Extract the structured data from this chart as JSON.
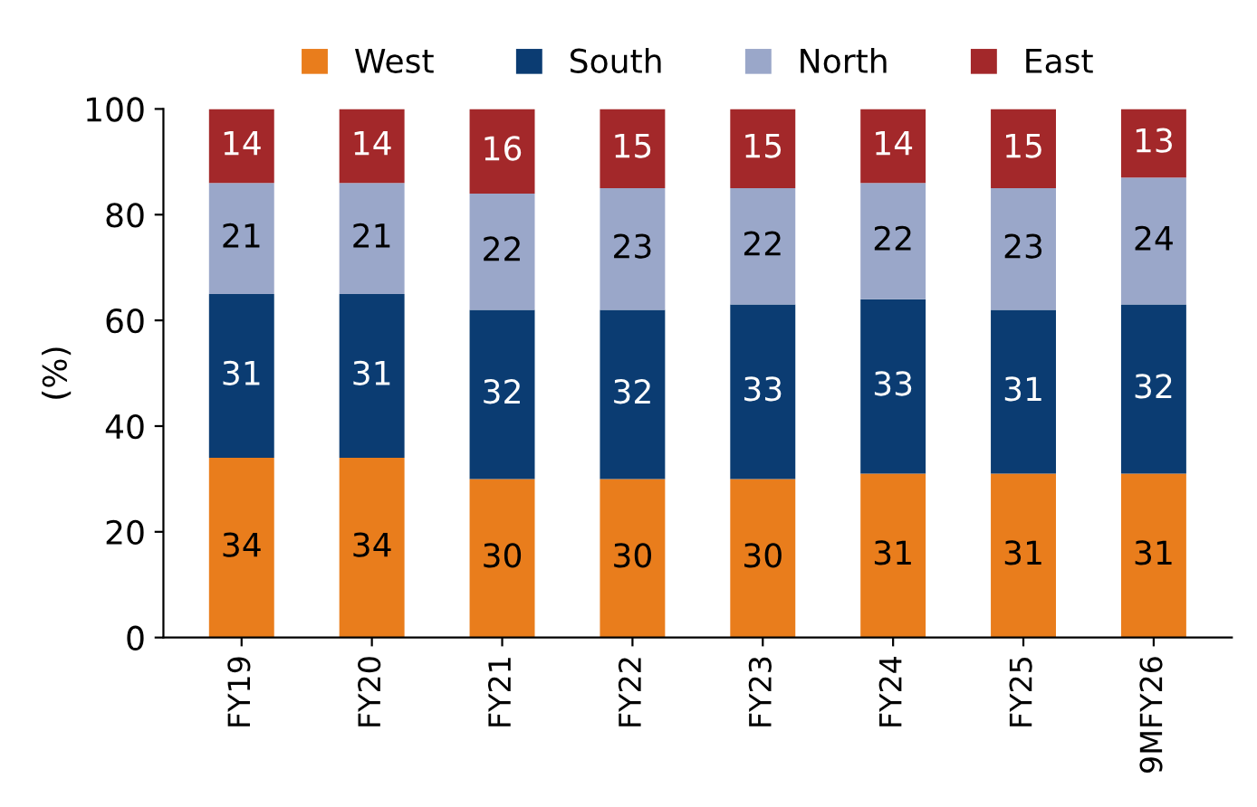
{
  "chart_data": {
    "type": "bar",
    "stacked": true,
    "ylabel": "(%)",
    "categories": [
      "FY19",
      "FY20",
      "FY21",
      "FY22",
      "FY23",
      "FY24",
      "FY25",
      "9MFY26"
    ],
    "series": [
      {
        "name": "West",
        "color": "#e97d1c",
        "values": [
          34,
          34,
          30,
          30,
          30,
          31,
          31,
          31
        ]
      },
      {
        "name": "South",
        "color": "#0b3c72",
        "values": [
          31,
          31,
          32,
          32,
          33,
          33,
          31,
          32
        ]
      },
      {
        "name": "North",
        "color": "#9aa7c9",
        "values": [
          21,
          21,
          22,
          23,
          22,
          22,
          23,
          24
        ]
      },
      {
        "name": "East",
        "color": "#a3282a",
        "values": [
          14,
          14,
          16,
          15,
          15,
          14,
          15,
          13
        ]
      }
    ],
    "ylim": [
      0,
      100
    ],
    "yticks": [
      0,
      20,
      40,
      60,
      80,
      100
    ],
    "data_labels": true,
    "legend": "top",
    "grid": false
  }
}
